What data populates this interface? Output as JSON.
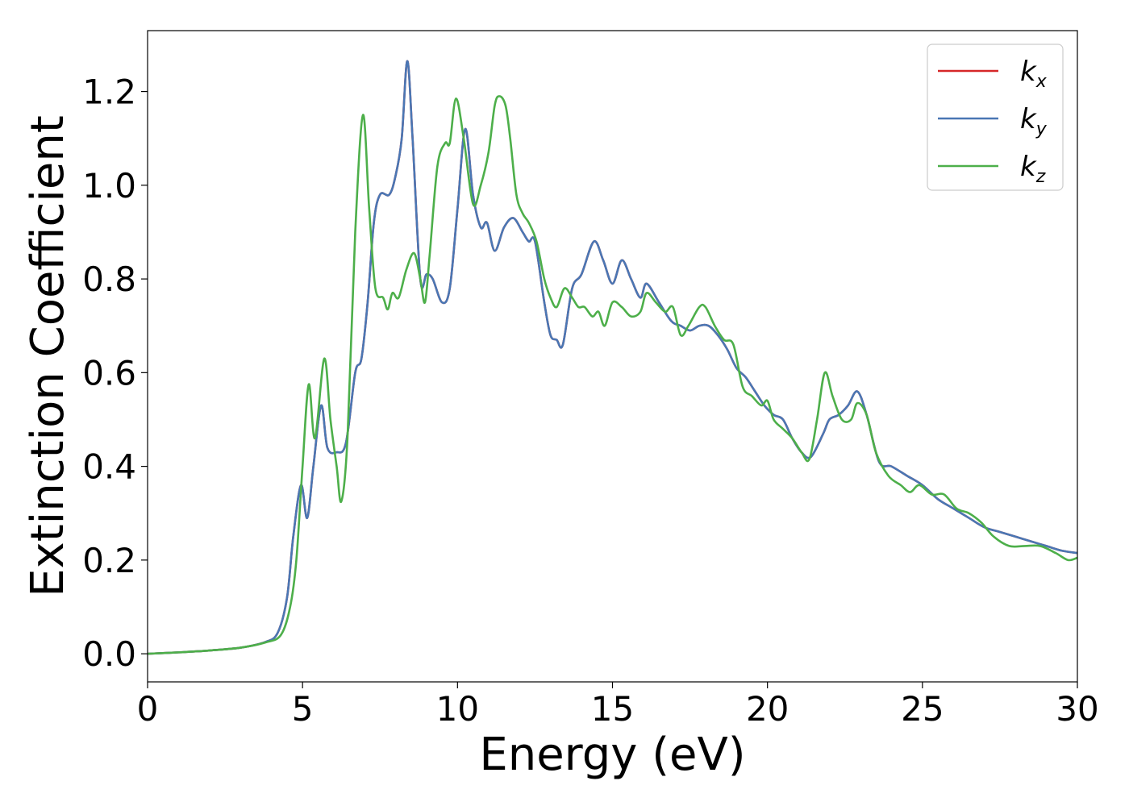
{
  "chart_data": {
    "type": "line",
    "title": "",
    "xlabel": "Energy (eV)",
    "ylabel": "Extinction Coefficient",
    "xlim": [
      0,
      30
    ],
    "ylim": [
      -0.06,
      1.33
    ],
    "xticks": [
      0,
      5,
      10,
      15,
      20,
      25,
      30
    ],
    "xtick_labels": [
      "0",
      "5",
      "10",
      "15",
      "20",
      "25",
      "30"
    ],
    "yticks": [
      0.0,
      0.2,
      0.4,
      0.6,
      0.8,
      1.0,
      1.2
    ],
    "ytick_labels": [
      "0.0",
      "0.2",
      "0.4",
      "0.6",
      "0.8",
      "1.0",
      "1.2"
    ],
    "grid": false,
    "legend_position": "top-right",
    "series": [
      {
        "name": "k_x",
        "legend_base": "k",
        "legend_sub": "x",
        "color": "#d62728",
        "points": [
          [
            0,
            0.0
          ],
          [
            1,
            0.003
          ],
          [
            2,
            0.007
          ],
          [
            3,
            0.013
          ],
          [
            3.8,
            0.025
          ],
          [
            4.2,
            0.045
          ],
          [
            4.5,
            0.12
          ],
          [
            4.7,
            0.25
          ],
          [
            4.95,
            0.36
          ],
          [
            5.15,
            0.29
          ],
          [
            5.35,
            0.4
          ],
          [
            5.6,
            0.53
          ],
          [
            5.8,
            0.44
          ],
          [
            6.1,
            0.43
          ],
          [
            6.4,
            0.45
          ],
          [
            6.7,
            0.6
          ],
          [
            6.9,
            0.63
          ],
          [
            7.1,
            0.75
          ],
          [
            7.3,
            0.92
          ],
          [
            7.5,
            0.98
          ],
          [
            7.8,
            0.98
          ],
          [
            8.0,
            1.02
          ],
          [
            8.2,
            1.1
          ],
          [
            8.38,
            1.265
          ],
          [
            8.55,
            1.1
          ],
          [
            8.8,
            0.8
          ],
          [
            9.0,
            0.81
          ],
          [
            9.2,
            0.8
          ],
          [
            9.5,
            0.75
          ],
          [
            9.75,
            0.78
          ],
          [
            10.0,
            0.95
          ],
          [
            10.25,
            1.12
          ],
          [
            10.5,
            0.98
          ],
          [
            10.75,
            0.91
          ],
          [
            10.95,
            0.92
          ],
          [
            11.2,
            0.86
          ],
          [
            11.5,
            0.91
          ],
          [
            11.8,
            0.93
          ],
          [
            12.1,
            0.9
          ],
          [
            12.3,
            0.88
          ],
          [
            12.5,
            0.88
          ],
          [
            12.8,
            0.75
          ],
          [
            13.0,
            0.68
          ],
          [
            13.2,
            0.67
          ],
          [
            13.4,
            0.66
          ],
          [
            13.7,
            0.78
          ],
          [
            14.0,
            0.81
          ],
          [
            14.4,
            0.88
          ],
          [
            14.7,
            0.84
          ],
          [
            15.0,
            0.79
          ],
          [
            15.3,
            0.84
          ],
          [
            15.6,
            0.8
          ],
          [
            15.9,
            0.76
          ],
          [
            16.1,
            0.79
          ],
          [
            16.5,
            0.75
          ],
          [
            16.9,
            0.71
          ],
          [
            17.2,
            0.7
          ],
          [
            17.5,
            0.69
          ],
          [
            17.8,
            0.7
          ],
          [
            18.1,
            0.7
          ],
          [
            18.4,
            0.68
          ],
          [
            18.7,
            0.65
          ],
          [
            19.0,
            0.61
          ],
          [
            19.3,
            0.59
          ],
          [
            19.6,
            0.56
          ],
          [
            19.9,
            0.53
          ],
          [
            20.2,
            0.51
          ],
          [
            20.5,
            0.5
          ],
          [
            20.8,
            0.46
          ],
          [
            21.1,
            0.43
          ],
          [
            21.4,
            0.42
          ],
          [
            21.8,
            0.47
          ],
          [
            22.0,
            0.5
          ],
          [
            22.3,
            0.51
          ],
          [
            22.6,
            0.53
          ],
          [
            22.9,
            0.56
          ],
          [
            23.2,
            0.51
          ],
          [
            23.6,
            0.41
          ],
          [
            24.0,
            0.4
          ],
          [
            24.5,
            0.38
          ],
          [
            25.0,
            0.36
          ],
          [
            25.5,
            0.33
          ],
          [
            26.0,
            0.31
          ],
          [
            26.5,
            0.29
          ],
          [
            27.0,
            0.27
          ],
          [
            27.5,
            0.26
          ],
          [
            28.0,
            0.25
          ],
          [
            28.5,
            0.24
          ],
          [
            29.0,
            0.23
          ],
          [
            29.5,
            0.22
          ],
          [
            30.0,
            0.215
          ]
        ]
      },
      {
        "name": "k_y",
        "legend_base": "k",
        "legend_sub": "y",
        "color": "#4a77b4",
        "points": [
          [
            0,
            0.0
          ],
          [
            1,
            0.003
          ],
          [
            2,
            0.007
          ],
          [
            3,
            0.013
          ],
          [
            3.8,
            0.025
          ],
          [
            4.2,
            0.045
          ],
          [
            4.5,
            0.12
          ],
          [
            4.7,
            0.25
          ],
          [
            4.95,
            0.36
          ],
          [
            5.15,
            0.29
          ],
          [
            5.35,
            0.4
          ],
          [
            5.6,
            0.53
          ],
          [
            5.8,
            0.44
          ],
          [
            6.1,
            0.43
          ],
          [
            6.4,
            0.45
          ],
          [
            6.7,
            0.6
          ],
          [
            6.9,
            0.63
          ],
          [
            7.1,
            0.75
          ],
          [
            7.3,
            0.92
          ],
          [
            7.5,
            0.98
          ],
          [
            7.8,
            0.98
          ],
          [
            8.0,
            1.02
          ],
          [
            8.2,
            1.1
          ],
          [
            8.38,
            1.265
          ],
          [
            8.55,
            1.1
          ],
          [
            8.8,
            0.8
          ],
          [
            9.0,
            0.81
          ],
          [
            9.2,
            0.8
          ],
          [
            9.5,
            0.75
          ],
          [
            9.75,
            0.78
          ],
          [
            10.0,
            0.95
          ],
          [
            10.25,
            1.12
          ],
          [
            10.5,
            0.98
          ],
          [
            10.75,
            0.91
          ],
          [
            10.95,
            0.92
          ],
          [
            11.2,
            0.86
          ],
          [
            11.5,
            0.91
          ],
          [
            11.8,
            0.93
          ],
          [
            12.1,
            0.9
          ],
          [
            12.3,
            0.88
          ],
          [
            12.5,
            0.88
          ],
          [
            12.8,
            0.75
          ],
          [
            13.0,
            0.68
          ],
          [
            13.2,
            0.67
          ],
          [
            13.4,
            0.66
          ],
          [
            13.7,
            0.78
          ],
          [
            14.0,
            0.81
          ],
          [
            14.4,
            0.88
          ],
          [
            14.7,
            0.84
          ],
          [
            15.0,
            0.79
          ],
          [
            15.3,
            0.84
          ],
          [
            15.6,
            0.8
          ],
          [
            15.9,
            0.76
          ],
          [
            16.1,
            0.79
          ],
          [
            16.5,
            0.75
          ],
          [
            16.9,
            0.71
          ],
          [
            17.2,
            0.7
          ],
          [
            17.5,
            0.69
          ],
          [
            17.8,
            0.7
          ],
          [
            18.1,
            0.7
          ],
          [
            18.4,
            0.68
          ],
          [
            18.7,
            0.65
          ],
          [
            19.0,
            0.61
          ],
          [
            19.3,
            0.59
          ],
          [
            19.6,
            0.56
          ],
          [
            19.9,
            0.53
          ],
          [
            20.2,
            0.51
          ],
          [
            20.5,
            0.5
          ],
          [
            20.8,
            0.46
          ],
          [
            21.1,
            0.43
          ],
          [
            21.4,
            0.42
          ],
          [
            21.8,
            0.47
          ],
          [
            22.0,
            0.5
          ],
          [
            22.3,
            0.51
          ],
          [
            22.6,
            0.53
          ],
          [
            22.9,
            0.56
          ],
          [
            23.2,
            0.51
          ],
          [
            23.6,
            0.41
          ],
          [
            24.0,
            0.4
          ],
          [
            24.5,
            0.38
          ],
          [
            25.0,
            0.36
          ],
          [
            25.5,
            0.33
          ],
          [
            26.0,
            0.31
          ],
          [
            26.5,
            0.29
          ],
          [
            27.0,
            0.27
          ],
          [
            27.5,
            0.26
          ],
          [
            28.0,
            0.25
          ],
          [
            28.5,
            0.24
          ],
          [
            29.0,
            0.23
          ],
          [
            29.5,
            0.22
          ],
          [
            30.0,
            0.215
          ]
        ]
      },
      {
        "name": "k_z",
        "legend_base": "k",
        "legend_sub": "z",
        "color": "#4daf4a",
        "points": [
          [
            0,
            0.0
          ],
          [
            1,
            0.003
          ],
          [
            2,
            0.007
          ],
          [
            3,
            0.013
          ],
          [
            3.8,
            0.024
          ],
          [
            4.3,
            0.04
          ],
          [
            4.6,
            0.1
          ],
          [
            4.8,
            0.2
          ],
          [
            5.0,
            0.4
          ],
          [
            5.2,
            0.575
          ],
          [
            5.4,
            0.46
          ],
          [
            5.7,
            0.63
          ],
          [
            5.9,
            0.5
          ],
          [
            6.1,
            0.4
          ],
          [
            6.25,
            0.325
          ],
          [
            6.45,
            0.46
          ],
          [
            6.7,
            0.9
          ],
          [
            6.95,
            1.15
          ],
          [
            7.15,
            0.95
          ],
          [
            7.35,
            0.78
          ],
          [
            7.6,
            0.76
          ],
          [
            7.75,
            0.735
          ],
          [
            7.9,
            0.77
          ],
          [
            8.1,
            0.76
          ],
          [
            8.35,
            0.82
          ],
          [
            8.6,
            0.855
          ],
          [
            8.8,
            0.8
          ],
          [
            8.95,
            0.75
          ],
          [
            9.1,
            0.85
          ],
          [
            9.35,
            1.04
          ],
          [
            9.6,
            1.09
          ],
          [
            9.75,
            1.09
          ],
          [
            9.95,
            1.185
          ],
          [
            10.2,
            1.1
          ],
          [
            10.5,
            0.96
          ],
          [
            10.75,
            1.0
          ],
          [
            11.0,
            1.07
          ],
          [
            11.2,
            1.17
          ],
          [
            11.35,
            1.19
          ],
          [
            11.55,
            1.17
          ],
          [
            11.7,
            1.1
          ],
          [
            11.9,
            0.98
          ],
          [
            12.1,
            0.94
          ],
          [
            12.3,
            0.92
          ],
          [
            12.55,
            0.88
          ],
          [
            12.8,
            0.8
          ],
          [
            13.0,
            0.76
          ],
          [
            13.2,
            0.74
          ],
          [
            13.45,
            0.78
          ],
          [
            13.7,
            0.76
          ],
          [
            13.9,
            0.74
          ],
          [
            14.1,
            0.74
          ],
          [
            14.35,
            0.72
          ],
          [
            14.55,
            0.73
          ],
          [
            14.75,
            0.7
          ],
          [
            15.0,
            0.75
          ],
          [
            15.3,
            0.74
          ],
          [
            15.6,
            0.72
          ],
          [
            15.9,
            0.73
          ],
          [
            16.1,
            0.77
          ],
          [
            16.4,
            0.75
          ],
          [
            16.7,
            0.73
          ],
          [
            16.95,
            0.74
          ],
          [
            17.2,
            0.68
          ],
          [
            17.45,
            0.7
          ],
          [
            17.8,
            0.74
          ],
          [
            18.0,
            0.74
          ],
          [
            18.3,
            0.7
          ],
          [
            18.6,
            0.67
          ],
          [
            18.9,
            0.66
          ],
          [
            19.2,
            0.57
          ],
          [
            19.5,
            0.55
          ],
          [
            19.8,
            0.53
          ],
          [
            20.0,
            0.54
          ],
          [
            20.2,
            0.5
          ],
          [
            20.5,
            0.48
          ],
          [
            20.8,
            0.46
          ],
          [
            21.1,
            0.43
          ],
          [
            21.35,
            0.415
          ],
          [
            21.6,
            0.5
          ],
          [
            21.85,
            0.6
          ],
          [
            22.1,
            0.55
          ],
          [
            22.4,
            0.5
          ],
          [
            22.7,
            0.5
          ],
          [
            22.9,
            0.535
          ],
          [
            23.2,
            0.51
          ],
          [
            23.5,
            0.43
          ],
          [
            23.9,
            0.38
          ],
          [
            24.3,
            0.36
          ],
          [
            24.6,
            0.345
          ],
          [
            24.9,
            0.36
          ],
          [
            25.3,
            0.34
          ],
          [
            25.7,
            0.34
          ],
          [
            26.1,
            0.31
          ],
          [
            26.5,
            0.3
          ],
          [
            26.9,
            0.28
          ],
          [
            27.3,
            0.25
          ],
          [
            27.8,
            0.23
          ],
          [
            28.3,
            0.23
          ],
          [
            28.8,
            0.23
          ],
          [
            29.3,
            0.215
          ],
          [
            29.7,
            0.2
          ],
          [
            30.0,
            0.205
          ]
        ]
      }
    ]
  }
}
